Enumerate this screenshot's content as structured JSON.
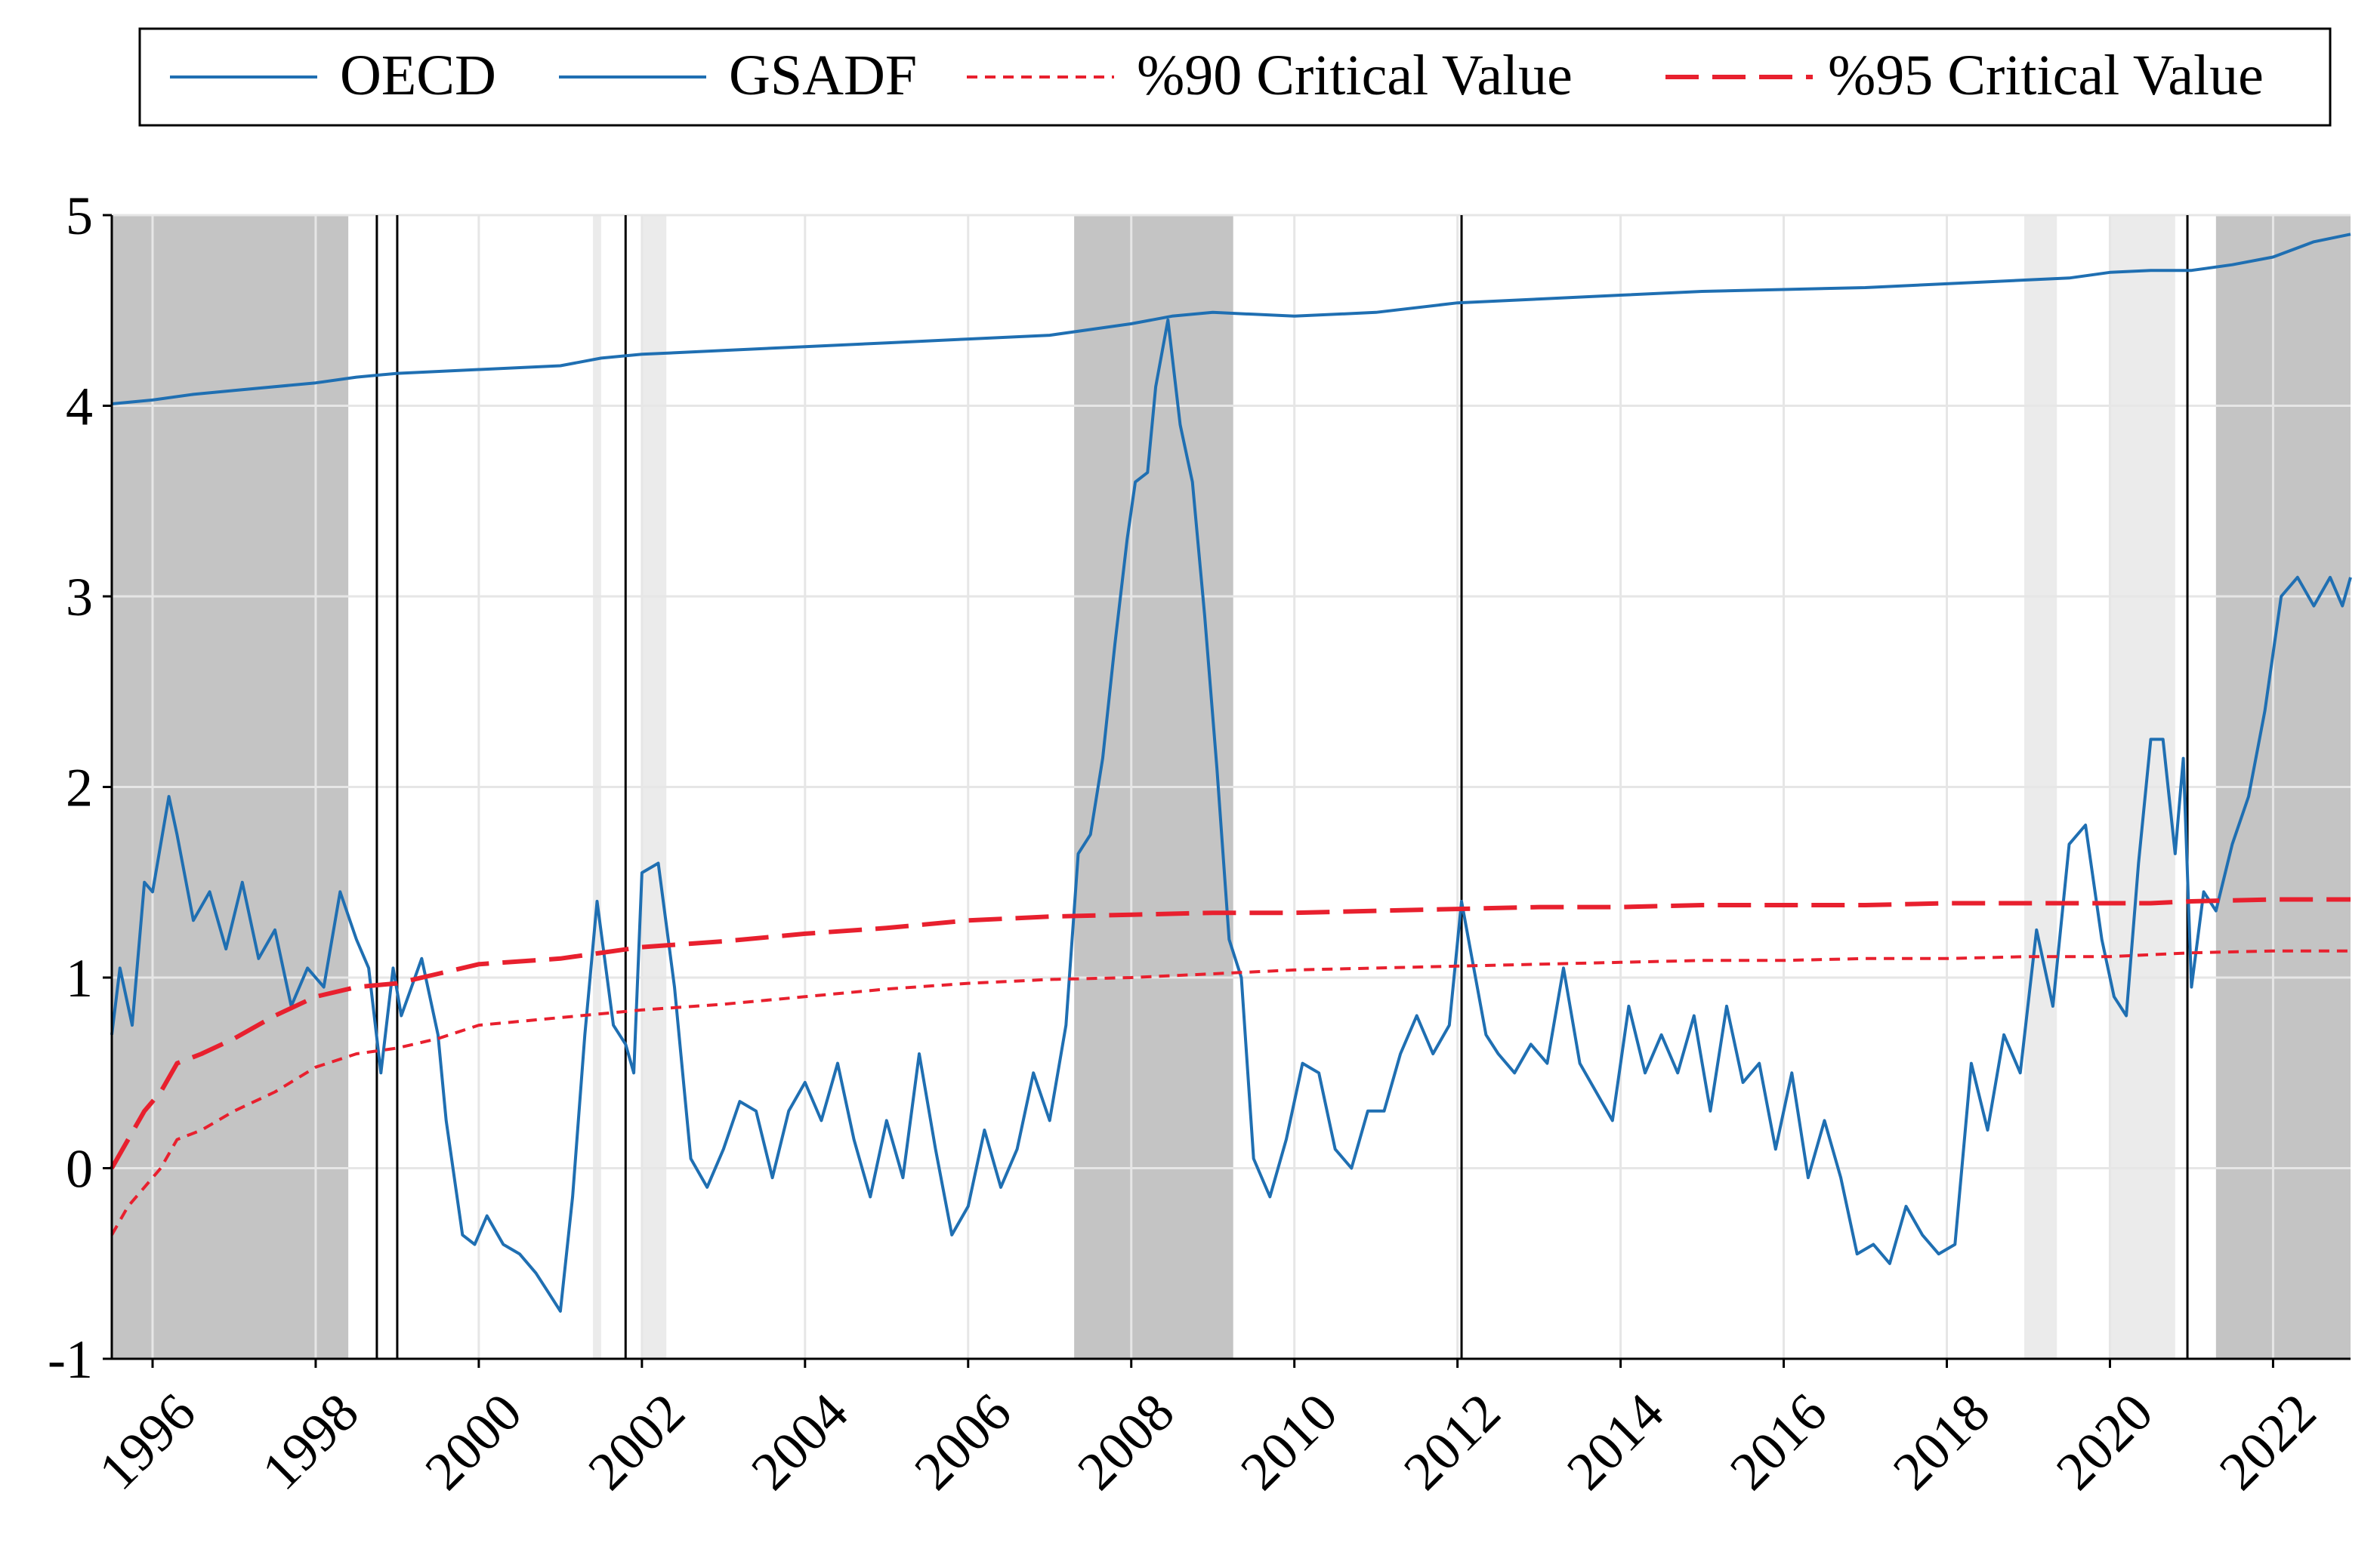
{
  "chart_data": {
    "type": "line",
    "title": "",
    "xlabel": "",
    "ylabel": "",
    "xlim": [
      1995.5,
      2022.95
    ],
    "ylim": [
      -1,
      5
    ],
    "yticks": [
      "5",
      "4",
      "3",
      "2",
      "1",
      "0",
      "-1"
    ],
    "ytick_values": [
      5,
      4,
      3,
      2,
      1,
      0,
      -1
    ],
    "xticks": [
      "1996",
      "1998",
      "2000",
      "2002",
      "2004",
      "2006",
      "2008",
      "2010",
      "2012",
      "2014",
      "2016",
      "2018",
      "2020",
      "2022"
    ],
    "xtick_values": [
      1996,
      1998,
      2000,
      2002,
      2004,
      2006,
      2008,
      2010,
      2012,
      2014,
      2016,
      2018,
      2020,
      2022
    ],
    "grid": true,
    "legend_position": "top",
    "colors": {
      "oecd": "#1f6fb2",
      "gsadf": "#1f6fb2",
      "cv90": "#e8202e",
      "cv95": "#e8202e",
      "shade_dark": "#c4c4c4",
      "shade_light": "#ebebeb",
      "grid": "#e6e6e6",
      "marker_lines": "#000000"
    },
    "legend": [
      "OECD",
      "GSADF",
      "%90 Critical Value",
      "%95 Critical Value"
    ],
    "shaded_periods_dark": [
      [
        1995.5,
        1998.4
      ],
      [
        2007.3,
        2009.25
      ],
      [
        2021.3,
        2022.95
      ]
    ],
    "shaded_periods_light": [
      [
        2001.4,
        2001.5
      ],
      [
        2002.0,
        2002.3
      ],
      [
        2018.95,
        2019.35
      ],
      [
        2020.0,
        2020.8
      ]
    ],
    "vertical_markers": [
      1998.75,
      1999.0,
      2001.8,
      2012.05,
      2020.95
    ],
    "series": [
      {
        "name": "OECD",
        "style": "solid",
        "x": [
          1995.5,
          1996.0,
          1996.5,
          1997.0,
          1998.0,
          1998.5,
          1999.0,
          2000.0,
          2001.0,
          2001.5,
          2002.0,
          2003.0,
          2004.0,
          2005.0,
          2006.0,
          2007.0,
          2007.5,
          2008.0,
          2008.5,
          2009.0,
          2009.5,
          2010.0,
          2011.0,
          2012.0,
          2013.0,
          2014.0,
          2015.0,
          2016.0,
          2017.0,
          2018.0,
          2019.0,
          2019.5,
          2020.0,
          2020.5,
          2021.0,
          2021.5,
          2022.0,
          2022.5,
          2022.95
        ],
        "values": [
          4.01,
          4.03,
          4.06,
          4.08,
          4.12,
          4.15,
          4.17,
          4.19,
          4.21,
          4.25,
          4.27,
          4.29,
          4.31,
          4.33,
          4.35,
          4.37,
          4.4,
          4.43,
          4.47,
          4.49,
          4.48,
          4.47,
          4.49,
          4.54,
          4.56,
          4.58,
          4.6,
          4.61,
          4.62,
          4.64,
          4.66,
          4.67,
          4.7,
          4.71,
          4.71,
          4.74,
          4.78,
          4.86,
          4.9
        ]
      },
      {
        "name": "GSADF",
        "style": "solid",
        "x": [
          1995.5,
          1995.6,
          1995.75,
          1995.9,
          1996.0,
          1996.2,
          1996.3,
          1996.5,
          1996.7,
          1996.9,
          1997.1,
          1997.3,
          1997.5,
          1997.7,
          1997.9,
          1998.1,
          1998.3,
          1998.5,
          1998.65,
          1998.8,
          1998.95,
          1999.05,
          1999.3,
          1999.5,
          1999.6,
          1999.8,
          1999.95,
          2000.1,
          2000.3,
          2000.5,
          2000.7,
          2000.85,
          2001.0,
          2001.15,
          2001.3,
          2001.45,
          2001.65,
          2001.8,
          2001.9,
          2002.0,
          2002.2,
          2002.4,
          2002.6,
          2002.8,
          2003.0,
          2003.2,
          2003.4,
          2003.6,
          2003.8,
          2004.0,
          2004.2,
          2004.4,
          2004.6,
          2004.8,
          2005.0,
          2005.2,
          2005.4,
          2005.6,
          2005.8,
          2006.0,
          2006.2,
          2006.4,
          2006.6,
          2006.8,
          2007.0,
          2007.2,
          2007.35,
          2007.5,
          2007.65,
          2007.8,
          2007.95,
          2008.05,
          2008.2,
          2008.3,
          2008.45,
          2008.6,
          2008.75,
          2008.9,
          2009.05,
          2009.2,
          2009.35,
          2009.5,
          2009.7,
          2009.9,
          2010.1,
          2010.3,
          2010.5,
          2010.7,
          2010.9,
          2011.1,
          2011.3,
          2011.5,
          2011.7,
          2011.9,
          2012.05,
          2012.2,
          2012.35,
          2012.5,
          2012.7,
          2012.9,
          2013.1,
          2013.3,
          2013.5,
          2013.7,
          2013.9,
          2014.1,
          2014.3,
          2014.5,
          2014.7,
          2014.9,
          2015.1,
          2015.3,
          2015.5,
          2015.7,
          2015.9,
          2016.1,
          2016.3,
          2016.5,
          2016.7,
          2016.9,
          2017.1,
          2017.3,
          2017.5,
          2017.7,
          2017.9,
          2018.1,
          2018.3,
          2018.5,
          2018.7,
          2018.9,
          2019.1,
          2019.3,
          2019.5,
          2019.7,
          2019.9,
          2020.05,
          2020.2,
          2020.35,
          2020.5,
          2020.65,
          2020.8,
          2020.9,
          2021.0,
          2021.15,
          2021.3,
          2021.5,
          2021.7,
          2021.9,
          2022.1,
          2022.3,
          2022.5,
          2022.7,
          2022.85,
          2022.95
        ],
        "values": [
          0.7,
          1.05,
          0.75,
          1.5,
          1.45,
          1.95,
          1.75,
          1.3,
          1.45,
          1.15,
          1.5,
          1.1,
          1.25,
          0.85,
          1.05,
          0.95,
          1.45,
          1.2,
          1.05,
          0.5,
          1.05,
          0.8,
          1.1,
          0.7,
          0.25,
          -0.35,
          -0.4,
          -0.25,
          -0.4,
          -0.45,
          -0.55,
          -0.65,
          -0.75,
          -0.15,
          0.7,
          1.4,
          0.75,
          0.65,
          0.5,
          1.55,
          1.6,
          0.95,
          0.05,
          -0.1,
          0.1,
          0.35,
          0.3,
          -0.05,
          0.3,
          0.45,
          0.25,
          0.55,
          0.15,
          -0.15,
          0.25,
          -0.05,
          0.6,
          0.1,
          -0.35,
          -0.2,
          0.2,
          -0.1,
          0.1,
          0.5,
          0.25,
          0.75,
          1.65,
          1.75,
          2.15,
          2.75,
          3.3,
          3.6,
          3.65,
          4.1,
          4.45,
          3.9,
          3.6,
          2.9,
          2.1,
          1.2,
          1.0,
          0.05,
          -0.15,
          0.15,
          0.55,
          0.5,
          0.1,
          0.0,
          0.3,
          0.3,
          0.6,
          0.8,
          0.6,
          0.75,
          1.4,
          1.05,
          0.7,
          0.6,
          0.5,
          0.65,
          0.55,
          1.05,
          0.55,
          0.4,
          0.25,
          0.85,
          0.5,
          0.7,
          0.5,
          0.8,
          0.3,
          0.85,
          0.45,
          0.55,
          0.1,
          0.5,
          -0.05,
          0.25,
          -0.05,
          -0.45,
          -0.4,
          -0.5,
          -0.2,
          -0.35,
          -0.45,
          -0.4,
          0.55,
          0.2,
          0.7,
          0.5,
          1.25,
          0.85,
          1.7,
          1.8,
          1.2,
          0.9,
          0.8,
          1.6,
          2.25,
          2.25,
          1.65,
          2.15,
          0.95,
          1.45,
          1.35,
          1.7,
          1.95,
          2.4,
          3.0,
          3.1,
          2.95,
          3.1,
          2.95,
          3.1
        ]
      },
      {
        "name": "%90 Critical Value",
        "style": "short-dash",
        "x": [
          1995.5,
          1995.7,
          1995.9,
          1996.1,
          1996.3,
          1996.6,
          1997.0,
          1997.5,
          1998.0,
          1998.5,
          1999.0,
          1999.5,
          2000.0,
          2001.0,
          2002.0,
          2003.0,
          2004.0,
          2005.0,
          2006.0,
          2007.0,
          2008.0,
          2009.0,
          2010.0,
          2011.0,
          2012.0,
          2013.0,
          2014.0,
          2015.0,
          2016.0,
          2017.0,
          2018.0,
          2019.0,
          2020.0,
          2020.5,
          2021.0,
          2022.0,
          2022.95
        ],
        "values": [
          -0.35,
          -0.2,
          -0.1,
          0.0,
          0.15,
          0.2,
          0.3,
          0.4,
          0.53,
          0.6,
          0.63,
          0.68,
          0.75,
          0.79,
          0.83,
          0.86,
          0.9,
          0.94,
          0.97,
          0.99,
          1.0,
          1.02,
          1.04,
          1.05,
          1.06,
          1.07,
          1.08,
          1.09,
          1.09,
          1.1,
          1.1,
          1.11,
          1.11,
          1.12,
          1.13,
          1.14,
          1.14
        ]
      },
      {
        "name": "%95 Critical Value",
        "style": "long-dash",
        "x": [
          1995.5,
          1995.7,
          1995.9,
          1996.1,
          1996.3,
          1996.6,
          1997.0,
          1997.5,
          1998.0,
          1998.5,
          1999.0,
          1999.5,
          2000.0,
          2001.0,
          2002.0,
          2003.0,
          2004.0,
          2005.0,
          2006.0,
          2007.0,
          2008.0,
          2009.0,
          2010.0,
          2011.0,
          2012.0,
          2013.0,
          2014.0,
          2015.0,
          2016.0,
          2017.0,
          2018.0,
          2019.0,
          2020.0,
          2020.5,
          2021.0,
          2022.0,
          2022.95
        ],
        "values": [
          0.0,
          0.15,
          0.3,
          0.4,
          0.55,
          0.6,
          0.68,
          0.8,
          0.9,
          0.95,
          0.97,
          1.02,
          1.07,
          1.1,
          1.16,
          1.19,
          1.23,
          1.26,
          1.3,
          1.32,
          1.33,
          1.34,
          1.34,
          1.35,
          1.36,
          1.37,
          1.37,
          1.38,
          1.38,
          1.38,
          1.39,
          1.39,
          1.39,
          1.39,
          1.4,
          1.41,
          1.41
        ]
      }
    ]
  }
}
